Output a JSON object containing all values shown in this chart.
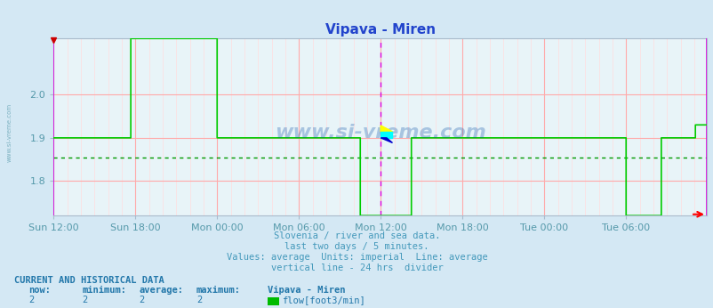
{
  "title": "Vipava - Miren",
  "bg_color": "#d4e8f4",
  "plot_bg_color": "#e8f4f8",
  "line_color": "#00cc00",
  "avg_line_color": "#009900",
  "grid_color_major": "#ffaaaa",
  "grid_color_minor": "#ffdddd",
  "vline_color_solid": "#dd00dd",
  "axis_label_color": "#5599aa",
  "title_color": "#2244cc",
  "subtitle_color": "#4499bb",
  "bottom_label_color": "#2277aa",
  "x_tick_labels": [
    "Sun 12:00",
    "Sun 18:00",
    "Mon 00:00",
    "Mon 06:00",
    "Mon 12:00",
    "Mon 18:00",
    "Tue 00:00",
    "Tue 06:00"
  ],
  "x_tick_positions": [
    0,
    72,
    144,
    216,
    288,
    360,
    432,
    504
  ],
  "total_points": 576,
  "ylim_min": 1.72,
  "ylim_max": 2.13,
  "yticks": [
    1.8,
    1.9,
    2.0
  ],
  "avg_value": 1.855,
  "subtitle_lines": [
    "Slovenia / river and sea data.",
    "last two days / 5 minutes.",
    "Values: average  Units: imperial  Line: average",
    "vertical line - 24 hrs  divider"
  ],
  "bottom_title": "CURRENT AND HISTORICAL DATA",
  "bottom_headers": [
    "now:",
    "minimum:",
    "average:",
    "maximum:",
    "Vipava - Miren"
  ],
  "bottom_values": [
    "2",
    "2",
    "2",
    "2"
  ],
  "bottom_legend_label": "flow[foot3/min]",
  "bottom_legend_color": "#00bb00",
  "watermark": "www.si-vreme.com",
  "watermark_color": "#1155aa"
}
